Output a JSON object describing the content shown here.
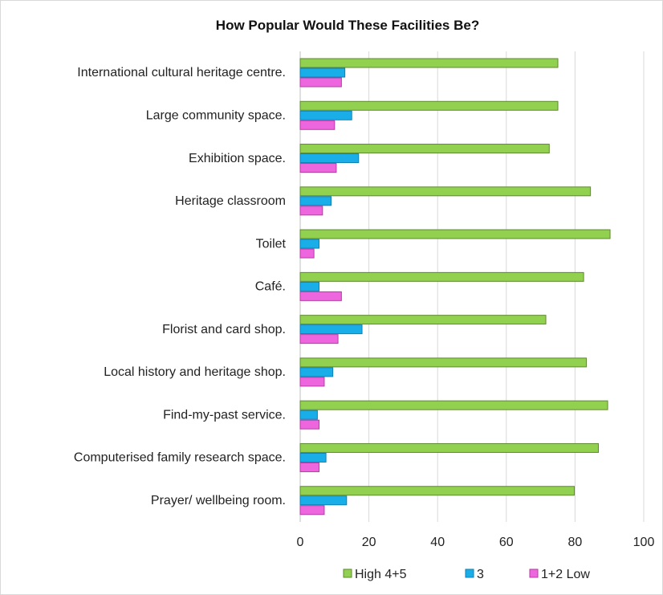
{
  "chart_data": {
    "type": "bar",
    "orientation": "horizontal",
    "title": "How Popular Would These Facilities Be?",
    "xlabel": "",
    "ylabel": "",
    "xlim": [
      0,
      100
    ],
    "x_ticks": [
      "0",
      "20",
      "40",
      "60",
      "80",
      "100"
    ],
    "grid": true,
    "legend_position": "bottom",
    "categories": [
      "International cultural heritage centre.",
      "Large community space.",
      "Exhibition space.",
      "Heritage classroom",
      "Toilet",
      "Café.",
      "Florist and card shop.",
      "Local history and heritage shop.",
      "Find-my-past service.",
      "Computerised family research space.",
      "Prayer/ wellbeing room."
    ],
    "series": [
      {
        "name": "High 4+5",
        "color": "#92d050",
        "values": [
          75,
          75,
          72.5,
          84.5,
          90.2,
          82.5,
          71.5,
          83.3,
          89.5,
          86.8,
          79.8
        ]
      },
      {
        "name": "3",
        "color": "#1aaee8",
        "values": [
          13,
          15,
          17,
          9,
          5.5,
          5.5,
          18,
          9.5,
          5,
          7.5,
          13.5
        ]
      },
      {
        "name": "1+2 Low",
        "color": "#ee66dd",
        "values": [
          12,
          10,
          10.5,
          6.5,
          4,
          12,
          11,
          7,
          5.5,
          5.5,
          7
        ]
      }
    ]
  }
}
